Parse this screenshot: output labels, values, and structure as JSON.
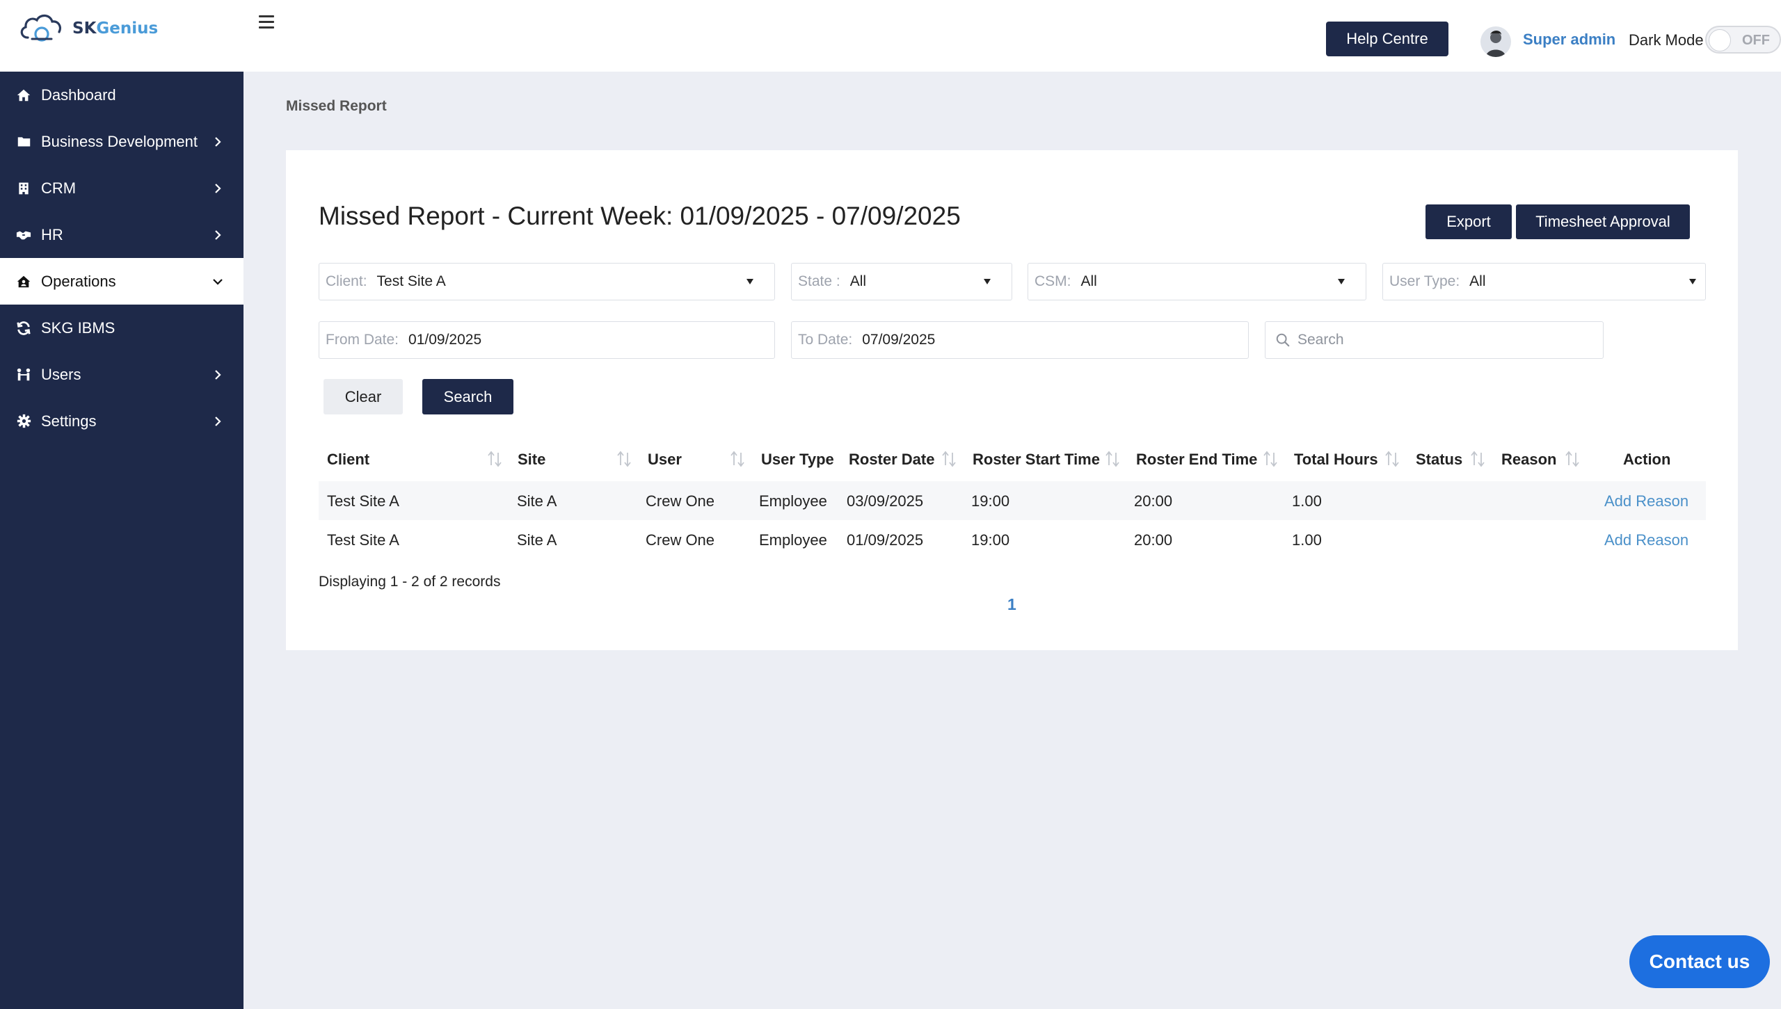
{
  "header": {
    "logo_text_sk": "SK",
    "logo_text_genius": "Genius",
    "help_label": "Help Centre",
    "user_name": "Super admin",
    "dark_mode_label": "Dark Mode",
    "dark_mode_state": "OFF"
  },
  "sidebar": {
    "items": [
      {
        "label": "Dashboard",
        "icon": "home-icon",
        "has_chevron": false,
        "active": false
      },
      {
        "label": "Business Development",
        "icon": "folder-icon",
        "has_chevron": true,
        "active": false
      },
      {
        "label": "CRM",
        "icon": "building-icon",
        "has_chevron": true,
        "active": false
      },
      {
        "label": "HR",
        "icon": "handshake-icon",
        "has_chevron": true,
        "active": false
      },
      {
        "label": "Operations",
        "icon": "house-user-icon",
        "has_chevron": true,
        "active": true
      },
      {
        "label": "SKG IBMS",
        "icon": "sync-icon",
        "has_chevron": false,
        "active": false
      },
      {
        "label": "Users",
        "icon": "users-icon",
        "has_chevron": true,
        "active": false
      },
      {
        "label": "Settings",
        "icon": "gear-icon",
        "has_chevron": true,
        "active": false
      }
    ]
  },
  "breadcrumb": "Missed Report",
  "page": {
    "title": "Missed Report - Current Week: 01/09/2025 - 07/09/2025",
    "export_label": "Export",
    "timesheet_label": "Timesheet Approval"
  },
  "filters": {
    "client_label": "Client:",
    "client_value": "Test Site A",
    "state_label": "State :",
    "state_value": "All",
    "csm_label": "CSM:",
    "csm_value": "All",
    "user_type_label": "User Type:",
    "user_type_value": "All",
    "from_label": "From Date:",
    "from_value": "01/09/2025",
    "to_label": "To Date:",
    "to_value": "07/09/2025",
    "search_placeholder": "Search",
    "clear_label": "Clear",
    "search_label": "Search"
  },
  "table": {
    "headers": {
      "client": "Client",
      "site": "Site",
      "user": "User",
      "user_type": "User Type",
      "roster_date": "Roster Date",
      "start": "Roster Start Time",
      "end": "Roster End Time",
      "hours": "Total Hours",
      "status": "Status",
      "reason": "Reason",
      "action": "Action"
    },
    "rows": [
      {
        "client": "Test Site A",
        "site": "Site A",
        "user": "Crew One",
        "user_type": "Employee",
        "roster_date": "03/09/2025",
        "start": "19:00",
        "end": "20:00",
        "hours": "1.00",
        "status": "",
        "reason": "",
        "action": "Add Reason"
      },
      {
        "client": "Test Site A",
        "site": "Site A",
        "user": "Crew One",
        "user_type": "Employee",
        "roster_date": "01/09/2025",
        "start": "19:00",
        "end": "20:00",
        "hours": "1.00",
        "status": "",
        "reason": "",
        "action": "Add Reason"
      }
    ],
    "records_text": "Displaying 1 - 2 of 2 records",
    "page": "1"
  },
  "contact_label": "Contact us",
  "colors": {
    "sidebar": "#1e2949",
    "accent": "#3b7fc4",
    "link": "#4a90c9",
    "contact": "#1d6fe0"
  }
}
